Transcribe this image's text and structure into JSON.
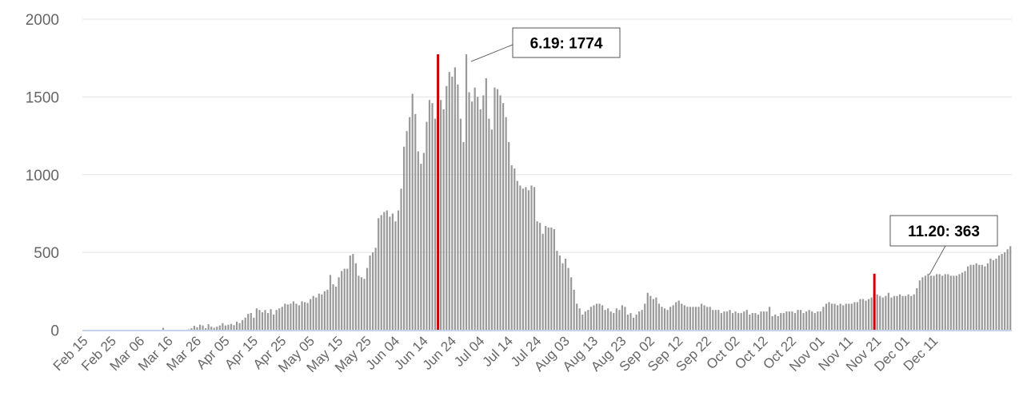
{
  "chart_data": {
    "type": "bar",
    "title": "",
    "xlabel": "",
    "ylabel": "",
    "ylim": [
      0,
      2000
    ],
    "y_ticks": [
      "0",
      "500",
      "1000",
      "1500",
      "2000"
    ],
    "grid": "horizontal",
    "legend": "none",
    "x_tick_labels": [
      "Feb 15",
      "Feb 25",
      "Mar 06",
      "Mar 16",
      "Mar 26",
      "Apr 05",
      "Apr 15",
      "Apr 25",
      "May 05",
      "May 15",
      "May 25",
      "Jun 04",
      "Jun 14",
      "Jun 24",
      "Jul 04",
      "Jul 14",
      "Jul 24",
      "Aug 03",
      "Aug 13",
      "Aug 23",
      "Sep 02",
      "Sep 12",
      "Sep 22",
      "Oct 02",
      "Oct 12",
      "Oct 22",
      "Nov 01",
      "Nov 11",
      "Nov 21",
      "Dec 01",
      "Dec 11"
    ],
    "x_tick_every_days": 10,
    "first_date": "Feb 15",
    "last_date": "Dec 16",
    "bar_color": "#999999",
    "highlight_color": "#cc0000",
    "baseline_color": "#c5d3e8",
    "highlights": [
      {
        "date": "Jun 19",
        "value": 1774,
        "label": "6.19:  1774"
      },
      {
        "date": "Nov 20",
        "value": 363,
        "label": "11.20:  363"
      }
    ],
    "series": [
      {
        "values": [
          0,
          0,
          0,
          0,
          0,
          0,
          0,
          0,
          0,
          0,
          0,
          0,
          0,
          0,
          0,
          0,
          0,
          0,
          0,
          0,
          0,
          0,
          0,
          0,
          0,
          0,
          0,
          0,
          15,
          0,
          0,
          0,
          0,
          0,
          0,
          0,
          0,
          5,
          12,
          28,
          18,
          35,
          30,
          12,
          38,
          22,
          15,
          22,
          30,
          45,
          30,
          35,
          40,
          32,
          55,
          45,
          65,
          80,
          105,
          110,
          80,
          140,
          130,
          115,
          130,
          110,
          135,
          100,
          130,
          140,
          150,
          170,
          165,
          170,
          185,
          170,
          160,
          185,
          180,
          175,
          200,
          220,
          210,
          235,
          230,
          250,
          260,
          355,
          295,
          280,
          340,
          380,
          395,
          395,
          480,
          490,
          430,
          350,
          340,
          330,
          400,
          480,
          500,
          530,
          720,
          740,
          760,
          770,
          730,
          750,
          700,
          770,
          910,
          1180,
          1280,
          1370,
          1520,
          1390,
          1150,
          1070,
          1140,
          1340,
          1480,
          1460,
          1360,
          1370,
          1480,
          1420,
          1570,
          1660,
          1630,
          1690,
          1580,
          1360,
          1210,
          1774,
          1530,
          1470,
          1560,
          1500,
          1420,
          1510,
          1620,
          1360,
          1290,
          1560,
          1550,
          1510,
          1460,
          1370,
          1210,
          1060,
          1040,
          960,
          930,
          910,
          920,
          900,
          930,
          920,
          700,
          690,
          620,
          670,
          660,
          660,
          650,
          510,
          480,
          430,
          460,
          400,
          340,
          260,
          170,
          140,
          100,
          120,
          130,
          150,
          160,
          170,
          170,
          160,
          130,
          140,
          120,
          110,
          140,
          130,
          160,
          150,
          100,
          110,
          80,
          100,
          120,
          130,
          170,
          240,
          220,
          200,
          210,
          170,
          150,
          140,
          130,
          150,
          160,
          180,
          190,
          170,
          160,
          150,
          150,
          150,
          150,
          150,
          170,
          160,
          150,
          150,
          130,
          130,
          130,
          110,
          120,
          120,
          130,
          110,
          120,
          110,
          110,
          120,
          130,
          100,
          110,
          110,
          100,
          120,
          120,
          120,
          150,
          90,
          100,
          90,
          110,
          110,
          120,
          120,
          120,
          110,
          130,
          130,
          110,
          120,
          130,
          120,
          110,
          120,
          120,
          150,
          170,
          180,
          170,
          170,
          160,
          170,
          160,
          170,
          170,
          170,
          180,
          180,
          200,
          200,
          190,
          200,
          210,
          210,
          230,
          220,
          210,
          220,
          240,
          210,
          220,
          220,
          230,
          220,
          220,
          230,
          220,
          230,
          270,
          320,
          340,
          350,
          363,
          350,
          350,
          360,
          360,
          350,
          360,
          360,
          350,
          350,
          350,
          360,
          370,
          380,
          410,
          420,
          420,
          430,
          420,
          420,
          410,
          430,
          460,
          450,
          460,
          480,
          490,
          500,
          520,
          540
        ]
      }
    ]
  }
}
